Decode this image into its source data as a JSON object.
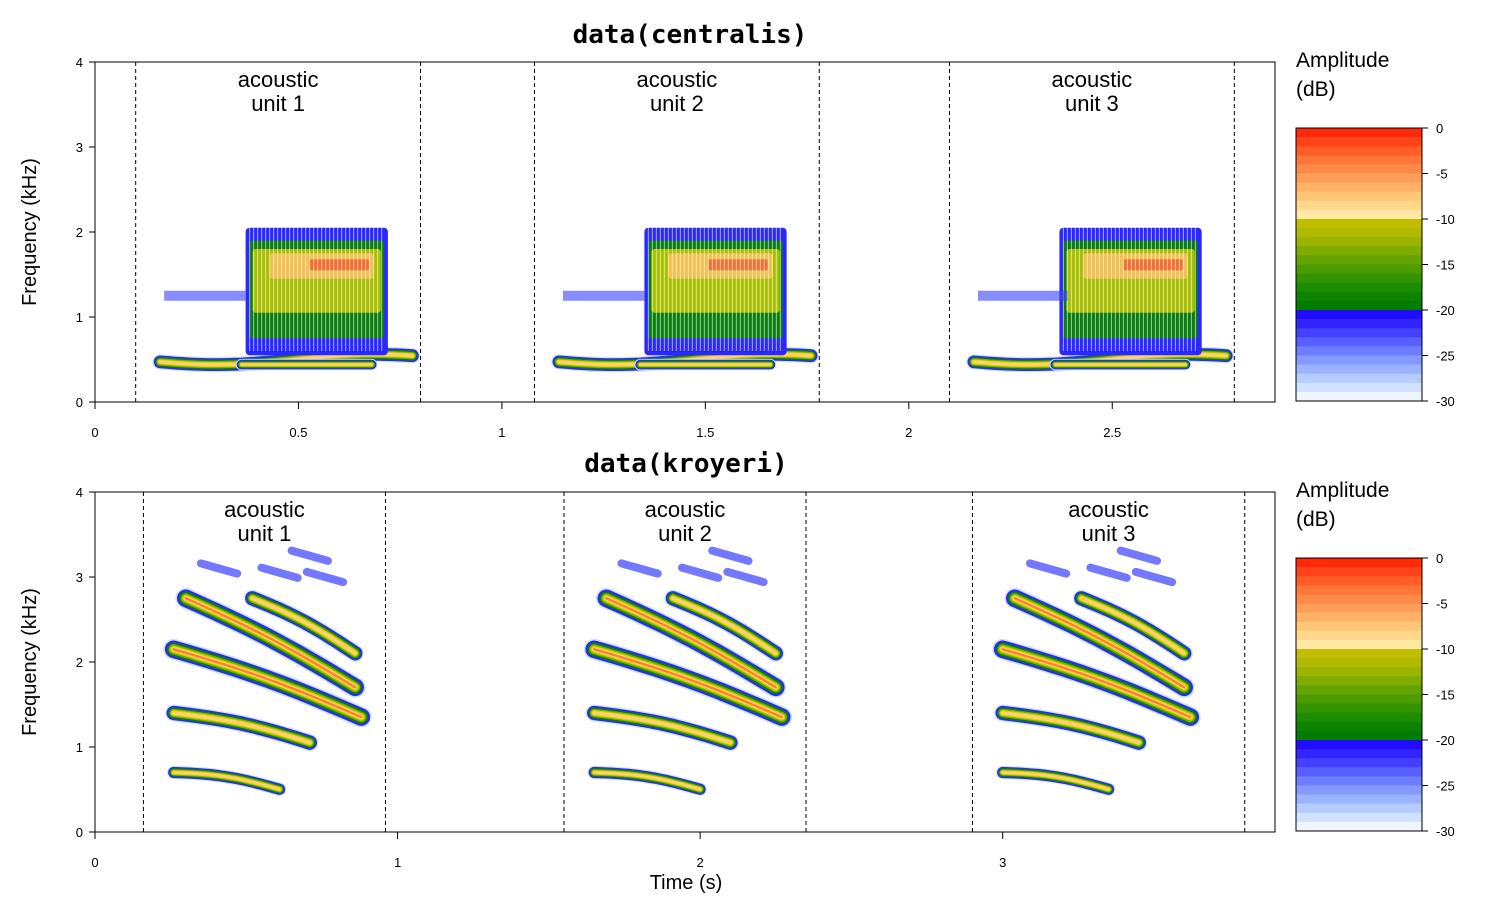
{
  "chart_data": [
    {
      "type": "heatmap",
      "title": "data(centralis)",
      "xlabel": "",
      "ylabel": "Frequency (kHz)",
      "xlim": [
        0,
        2.9
      ],
      "ylim": [
        0,
        4
      ],
      "x_ticks": [
        "0",
        "0.5",
        "1",
        "1.5",
        "2",
        "2.5"
      ],
      "x_tick_values": [
        0,
        0.5,
        1,
        1.5,
        2,
        2.5
      ],
      "y_ticks": [
        "0",
        "1",
        "2",
        "3",
        "4"
      ],
      "y_tick_values": [
        0,
        1,
        2,
        3,
        4
      ],
      "unit_boundaries": [
        0.1,
        0.8,
        1.08,
        1.78,
        2.1,
        2.8
      ],
      "units": [
        {
          "line1": "acoustic",
          "line2": "unit 1",
          "start": 0.1,
          "end": 0.8
        },
        {
          "line1": "acoustic",
          "line2": "unit 2",
          "start": 1.08,
          "end": 1.78
        },
        {
          "line1": "acoustic",
          "line2": "unit 3",
          "start": 2.1,
          "end": 2.8
        }
      ],
      "colorbar": {
        "label_line1": "Amplitude",
        "label_line2": "(dB)",
        "ticks": [
          "0",
          "-5",
          "-10",
          "-15",
          "-20",
          "-25",
          "-30"
        ],
        "tick_values": [
          0,
          -5,
          -10,
          -15,
          -20,
          -25,
          -30
        ],
        "range": [
          -30,
          0
        ]
      }
    },
    {
      "type": "heatmap",
      "title": "data(kroyeri)",
      "xlabel": "Time (s)",
      "ylabel": "Frequency (kHz)",
      "xlim": [
        0,
        3.9
      ],
      "ylim": [
        0,
        4
      ],
      "x_ticks": [
        "0",
        "1",
        "2",
        "3"
      ],
      "x_tick_values": [
        0,
        1,
        2,
        3
      ],
      "y_ticks": [
        "0",
        "1",
        "2",
        "3",
        "4"
      ],
      "y_tick_values": [
        0,
        1,
        2,
        3,
        4
      ],
      "unit_boundaries": [
        0.16,
        0.96,
        1.55,
        2.35,
        2.9,
        3.8
      ],
      "units": [
        {
          "line1": "acoustic",
          "line2": "unit 1",
          "start": 0.16,
          "end": 0.96
        },
        {
          "line1": "acoustic",
          "line2": "unit 2",
          "start": 1.55,
          "end": 2.35
        },
        {
          "line1": "acoustic",
          "line2": "unit 3",
          "start": 2.9,
          "end": 3.8
        }
      ],
      "colorbar": {
        "label_line1": "Amplitude",
        "label_line2": "(dB)",
        "ticks": [
          "0",
          "-5",
          "-10",
          "-15",
          "-20",
          "-25",
          "-30"
        ],
        "tick_values": [
          0,
          -5,
          -10,
          -15,
          -20,
          -25,
          -30
        ],
        "range": [
          -30,
          0
        ]
      }
    }
  ]
}
